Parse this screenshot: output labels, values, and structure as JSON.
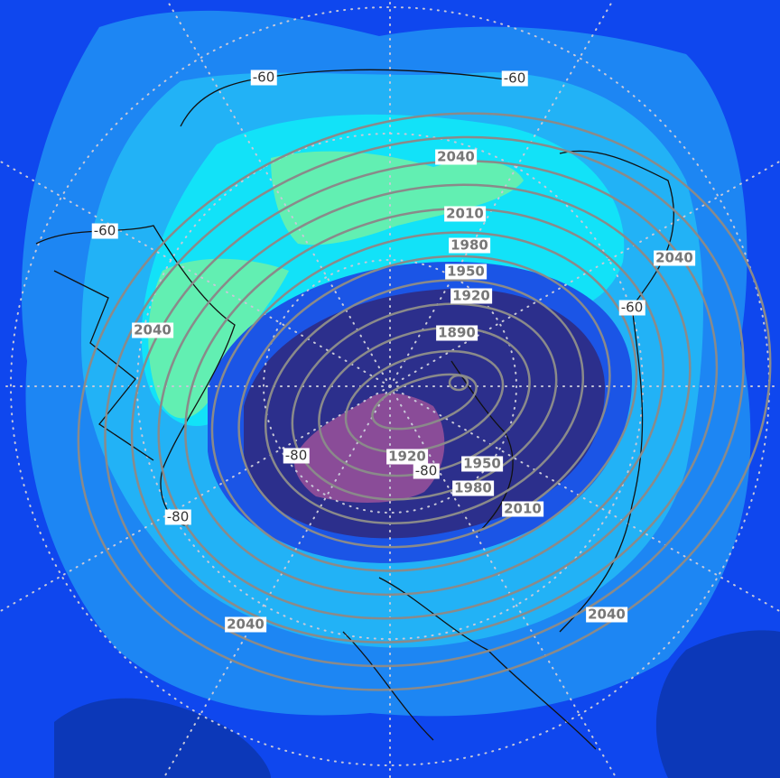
{
  "map": {
    "projection": "north polar stereographic",
    "fill_colors": {
      "outer": "#0f47ee",
      "level1": "#1d86f3",
      "level2": "#22b2f6",
      "level3": "#12e2f8",
      "warmest": "#62efb2",
      "cold1": "#1b55e6",
      "cold2": "#2c2f8c",
      "coldest": "#8a4c98",
      "deep_corner": "#0c38b8"
    },
    "contour_color": "#8a8a8a",
    "temperature_labels": [
      "-60",
      "-60",
      "-60",
      "-60",
      "-80",
      "-80",
      "-80"
    ],
    "height_labels": [
      "2040",
      "2010",
      "1980",
      "1950",
      "1920",
      "1890",
      "2040",
      "2040",
      "1920",
      "1950",
      "1980",
      "2010",
      "2040",
      "2040"
    ]
  }
}
